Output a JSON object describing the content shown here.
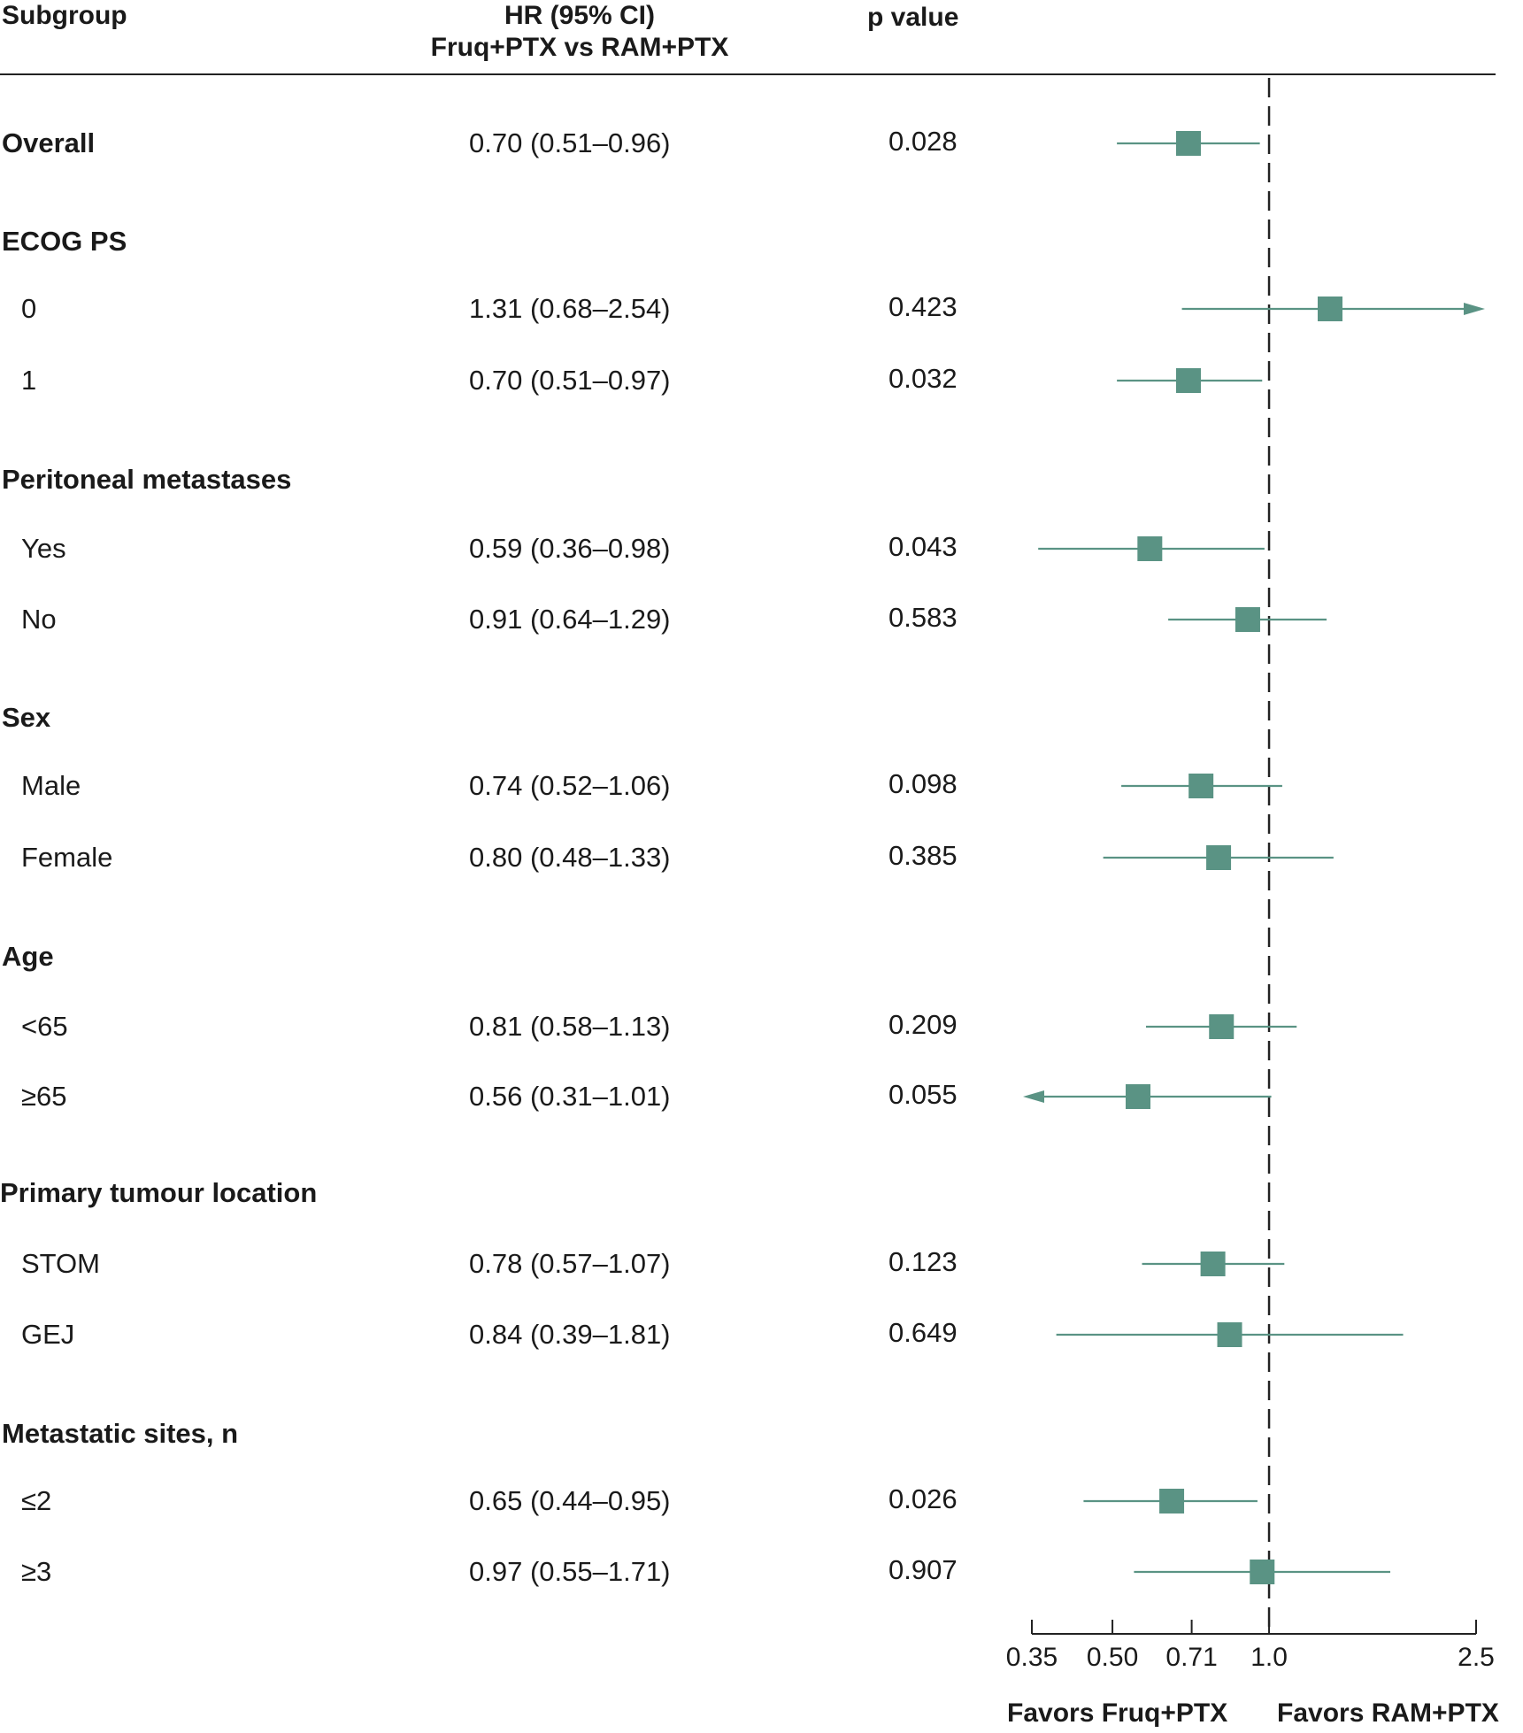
{
  "header": {
    "subgroup": "Subgroup",
    "hr_line1": "HR (95% CI)",
    "hr_line2": "Fruq+PTX vs RAM+PTX",
    "p_value": "p value"
  },
  "favors": {
    "left": "Favors Fruq+PTX",
    "right": "Favors RAM+PTX"
  },
  "colors": {
    "marker": "#5a9384",
    "text": "#1a1a1a"
  },
  "chart_data": {
    "type": "forest",
    "scale": "log",
    "xlim": [
      0.35,
      2.5
    ],
    "ticks": [
      {
        "value": 0.35,
        "label": "0.35"
      },
      {
        "value": 0.5,
        "label": "0.50"
      },
      {
        "value": 0.71,
        "label": "0.71"
      },
      {
        "value": 1.0,
        "label": "1.0"
      },
      {
        "value": 2.5,
        "label": "2.5"
      }
    ],
    "reference_line": 1.0,
    "rows": [
      {
        "label": "Overall",
        "header": true,
        "hr": 0.7,
        "lo": 0.51,
        "hi": 0.96,
        "text": "0.70 (0.51–0.96)",
        "p": "0.028"
      },
      {
        "label": "ECOG PS",
        "header": true
      },
      {
        "label": "0",
        "hr": 1.31,
        "lo": 0.68,
        "hi": 2.54,
        "text": "1.31 (0.68–2.54)",
        "p": "0.423",
        "arrow_right": true
      },
      {
        "label": "1",
        "hr": 0.7,
        "lo": 0.51,
        "hi": 0.97,
        "text": "0.70 (0.51–0.97)",
        "p": "0.032"
      },
      {
        "label": "Peritoneal metastases",
        "header": true
      },
      {
        "label": "Yes",
        "hr": 0.59,
        "lo": 0.36,
        "hi": 0.98,
        "text": "0.59 (0.36–0.98)",
        "p": "0.043"
      },
      {
        "label": "No",
        "hr": 0.91,
        "lo": 0.64,
        "hi": 1.29,
        "text": "0.91 (0.64–1.29)",
        "p": "0.583"
      },
      {
        "label": "Sex",
        "header": true
      },
      {
        "label": "Male",
        "hr": 0.74,
        "lo": 0.52,
        "hi": 1.06,
        "text": "0.74 (0.52–1.06)",
        "p": "0.098"
      },
      {
        "label": "Female",
        "hr": 0.8,
        "lo": 0.48,
        "hi": 1.33,
        "text": "0.80 (0.48–1.33)",
        "p": "0.385"
      },
      {
        "label": "Age",
        "header": true
      },
      {
        "label": "<65",
        "hr": 0.81,
        "lo": 0.58,
        "hi": 1.13,
        "text": "0.81 (0.58–1.13)",
        "p": "0.209"
      },
      {
        "label": "≥65",
        "hr": 0.56,
        "lo": 0.31,
        "hi": 1.01,
        "text": "0.56 (0.31–1.01)",
        "p": "0.055",
        "arrow_left": true
      },
      {
        "label": "Primary tumour location",
        "header": true
      },
      {
        "label": "STOM",
        "hr": 0.78,
        "lo": 0.57,
        "hi": 1.07,
        "text": "0.78 (0.57–1.07)",
        "p": "0.123"
      },
      {
        "label": "GEJ",
        "hr": 0.84,
        "lo": 0.39,
        "hi": 1.81,
        "text": "0.84 (0.39–1.81)",
        "p": "0.649"
      },
      {
        "label": "Metastatic sites, n",
        "header": true
      },
      {
        "label": "≤2",
        "hr": 0.65,
        "lo": 0.44,
        "hi": 0.95,
        "text": "0.65 (0.44–0.95)",
        "p": "0.026"
      },
      {
        "label": "≥3",
        "hr": 0.97,
        "lo": 0.55,
        "hi": 1.71,
        "text": "0.97 (0.55–1.71)",
        "p": "0.907"
      }
    ]
  }
}
